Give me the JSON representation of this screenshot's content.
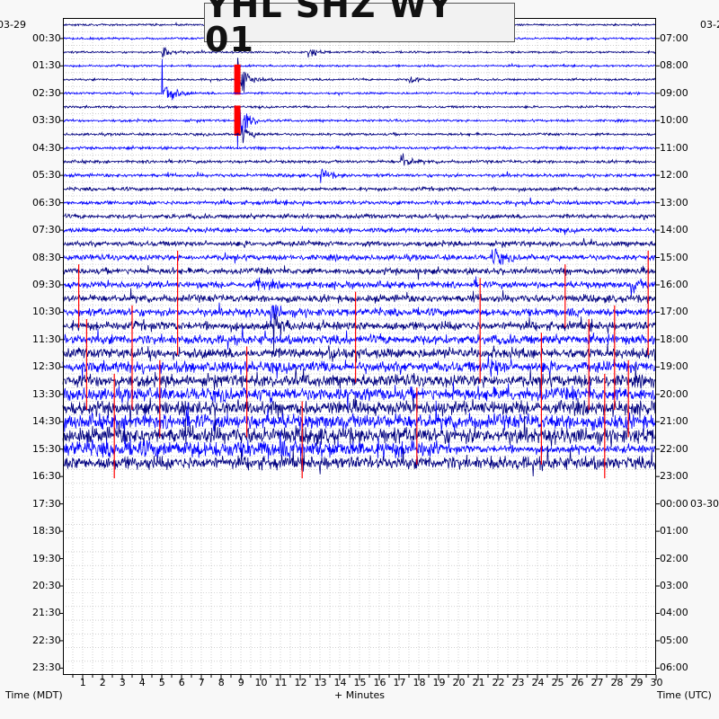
{
  "chart_data": {
    "type": "line",
    "title": "YHL SHZ WY 01",
    "xlabel": "+ Minutes",
    "ylabel_left": "Time (MDT)",
    "ylabel_right": "Time (UTC)",
    "date_left": "03-29",
    "date_right": "03-2",
    "date_right_midnight": "03-30",
    "x_ticks": [
      "1",
      "2",
      "3",
      "4",
      "5",
      "6",
      "7",
      "8",
      "9",
      "10",
      "11",
      "12",
      "13",
      "14",
      "15",
      "16",
      "17",
      "18",
      "19",
      "20",
      "21",
      "22",
      "23",
      "24",
      "25",
      "26",
      "27",
      "28",
      "29",
      "30"
    ],
    "xlim": [
      0,
      30
    ],
    "left_ticks": [
      "00:30",
      "01:30",
      "02:30",
      "03:30",
      "04:30",
      "05:30",
      "06:30",
      "07:30",
      "08:30",
      "09:30",
      "10:30",
      "11:30",
      "12:30",
      "13:30",
      "14:30",
      "15:30",
      "16:30",
      "17:30",
      "18:30",
      "19:30",
      "20:30",
      "21:30",
      "22:30",
      "23:30"
    ],
    "right_ticks": [
      "07:00",
      "08:00",
      "09:00",
      "10:00",
      "11:00",
      "12:00",
      "13:00",
      "14:00",
      "15:00",
      "16:00",
      "17:00",
      "18:00",
      "19:00",
      "20:00",
      "21:00",
      "22:00",
      "23:00",
      "00:00",
      "01:00",
      "02:00",
      "03:00",
      "04:00",
      "05:00",
      "06:00"
    ],
    "traces_per_hour": 2,
    "trace_minutes": 30,
    "recorded_traces": 33,
    "trace_colors": [
      "#000080",
      "#0000ff"
    ],
    "clip_color": "#ff0000",
    "grid": "dotted",
    "events": [
      {
        "trace": 2,
        "minute": 5.0,
        "amplitude": 12
      },
      {
        "trace": 5,
        "minute": 5.0,
        "amplitude": 28
      },
      {
        "trace": 4,
        "minute": 8.8,
        "amplitude": 30,
        "clipped": true
      },
      {
        "trace": 7,
        "minute": 8.8,
        "amplitude": 34,
        "clipped": true
      },
      {
        "trace": 8,
        "minute": 9.0,
        "amplitude": 10
      },
      {
        "trace": 1,
        "minute": 11.1,
        "amplitude": 8
      },
      {
        "trace": 2,
        "minute": 12.4,
        "amplitude": 7
      },
      {
        "trace": 4,
        "minute": 17.5,
        "amplitude": 5
      },
      {
        "trace": 10,
        "minute": 17.1,
        "amplitude": 10
      },
      {
        "trace": 11,
        "minute": 13.0,
        "amplitude": 9
      },
      {
        "trace": 17,
        "minute": 21.7,
        "amplitude": 12
      },
      {
        "trace": 19,
        "minute": 9.8,
        "amplitude": 8
      },
      {
        "trace": 19,
        "minute": 28.7,
        "amplitude": 9
      },
      {
        "trace": 21,
        "minute": 10.5,
        "amplitude": 11
      },
      {
        "trace": 22,
        "minute": 10.6,
        "amplitude": 16
      },
      {
        "trace": 24,
        "minute": 13.4,
        "amplitude": 10
      },
      {
        "trace": 25,
        "minute": 21.5,
        "amplitude": 10
      }
    ]
  }
}
